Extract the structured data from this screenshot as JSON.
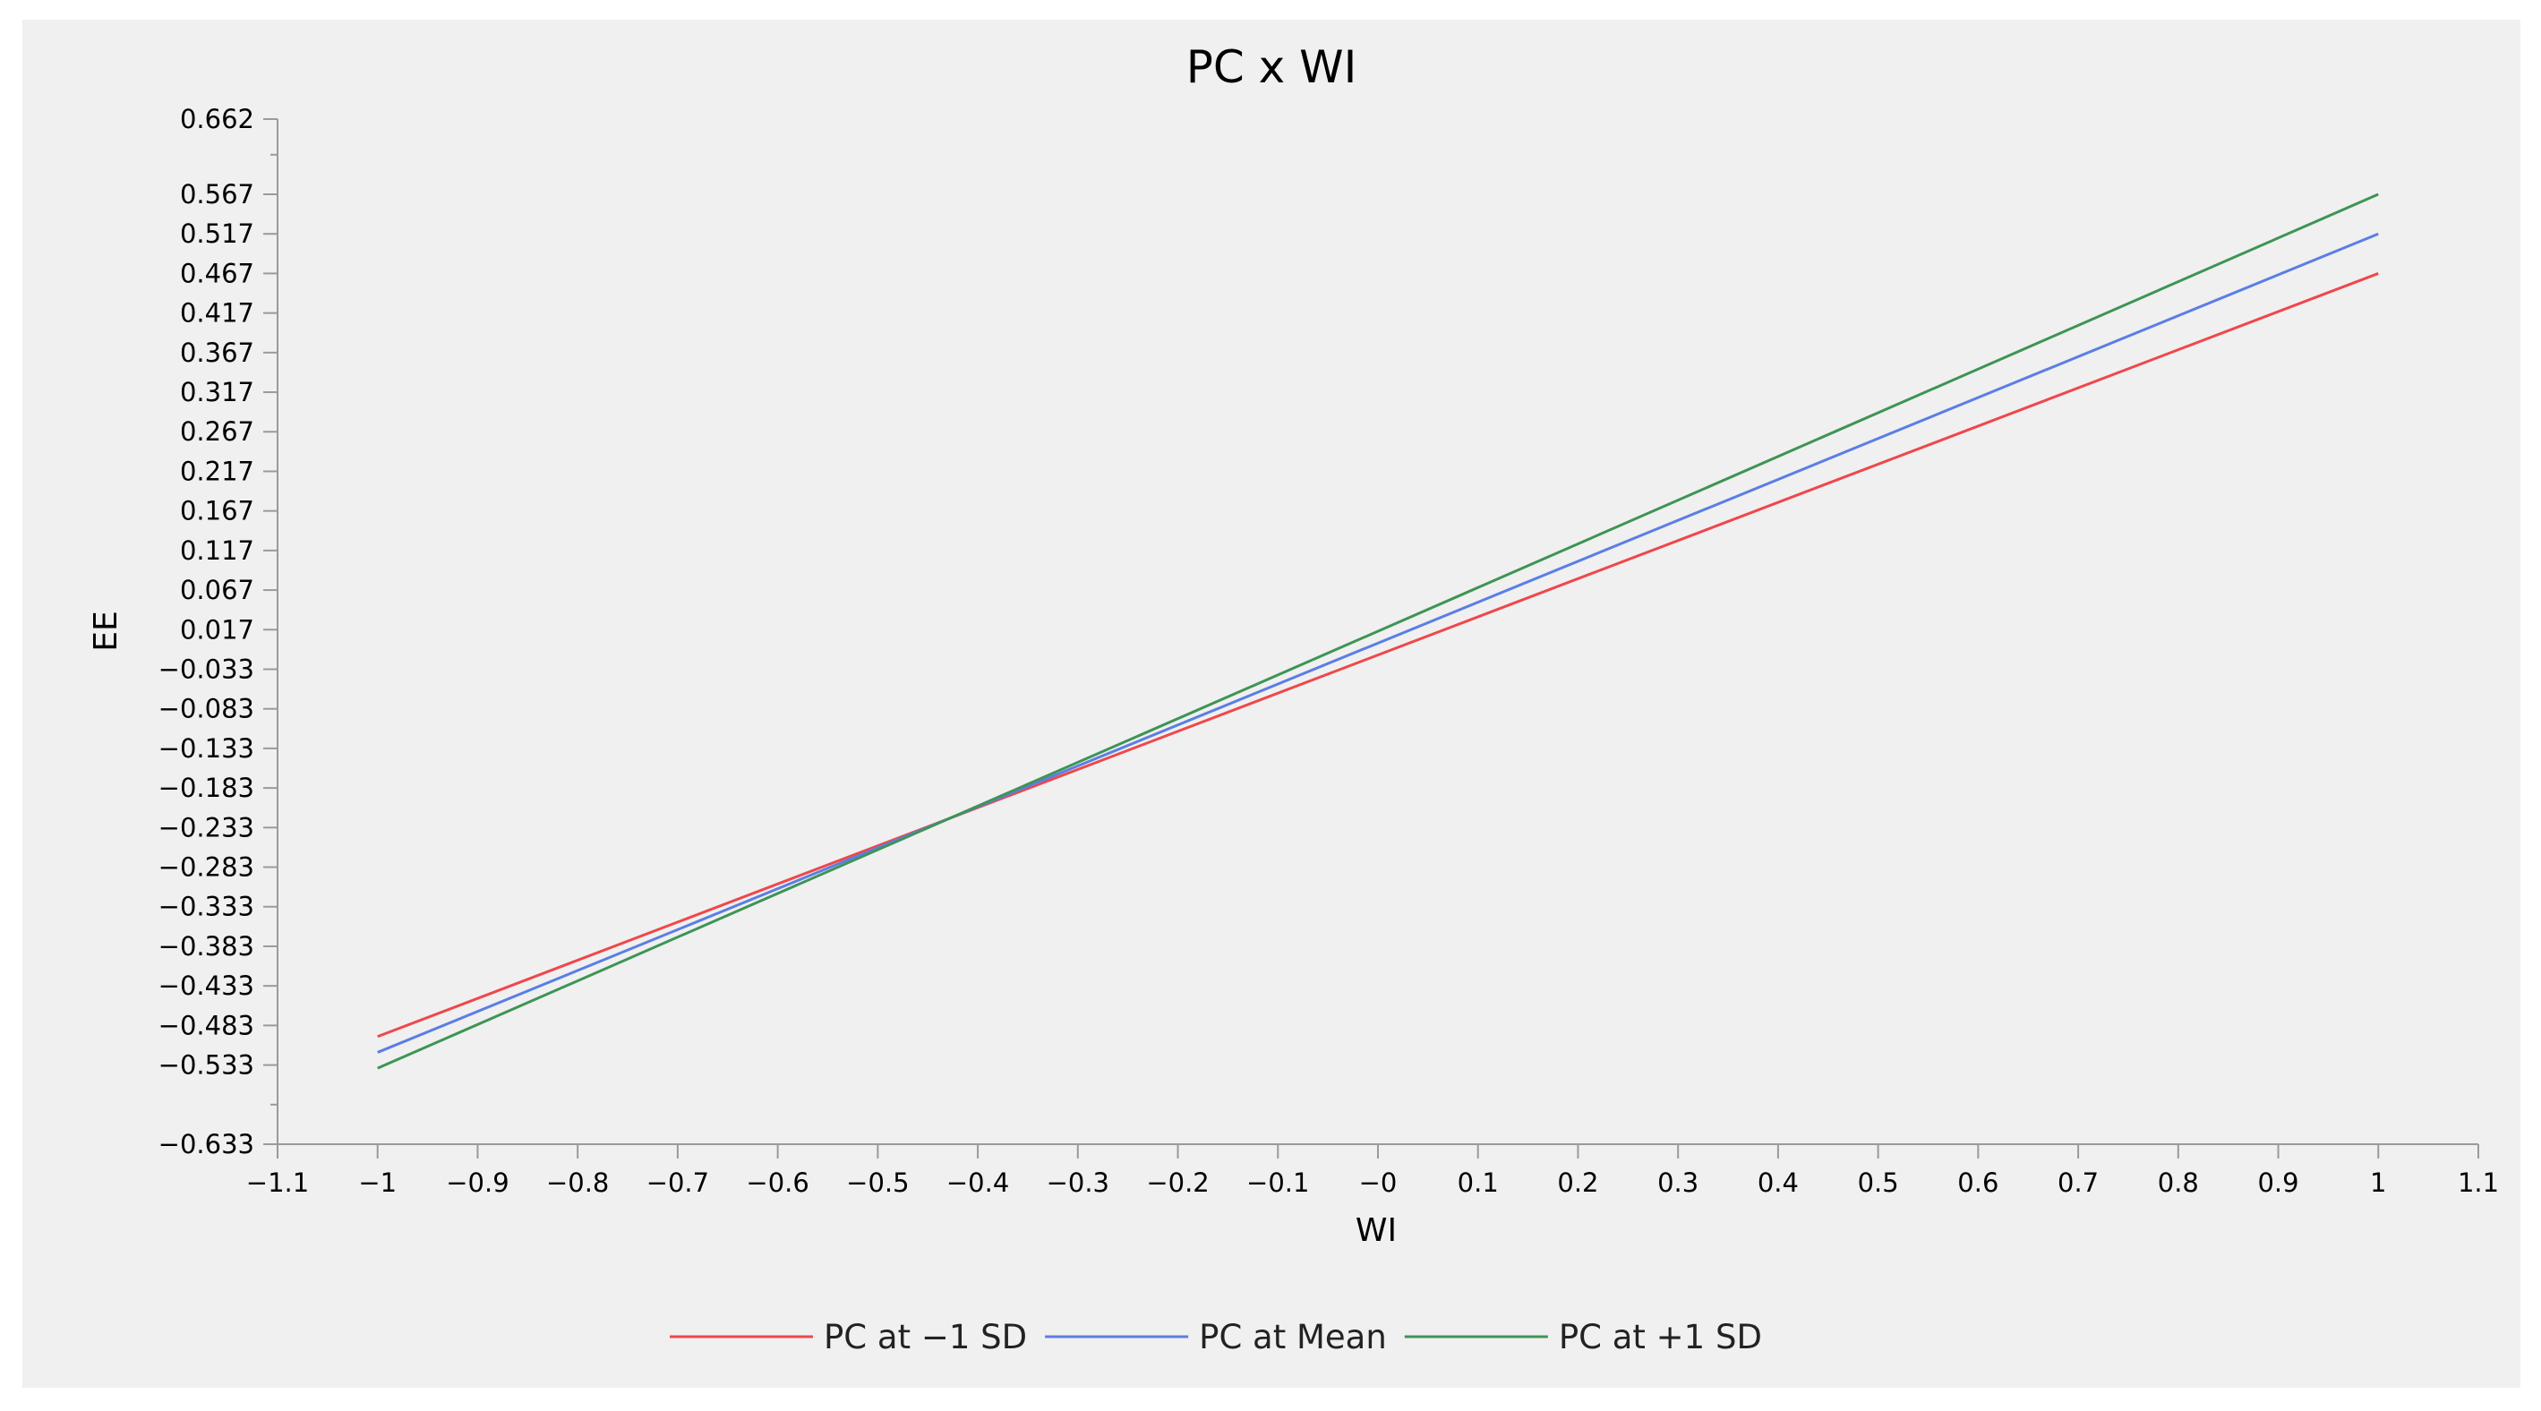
{
  "chart_data": {
    "type": "line",
    "title": "PC x WI",
    "xlabel": "WI",
    "ylabel": "EE",
    "xlim": [
      -1.1,
      1.1
    ],
    "ylim": [
      -0.633,
      0.662
    ],
    "x_ticks": [
      -1.1,
      -1,
      -0.9,
      -0.8,
      -0.7,
      -0.6,
      -0.5,
      -0.4,
      -0.3,
      -0.2,
      -0.1,
      0,
      0.1,
      0.2,
      0.3,
      0.4,
      0.5,
      0.6,
      0.7,
      0.8,
      0.9,
      1,
      1.1
    ],
    "x_tick_labels": [
      "−1.1",
      "−1",
      "−0.9",
      "−0.8",
      "−0.7",
      "−0.6",
      "−0.5",
      "−0.4",
      "−0.3",
      "−0.2",
      "−0.1",
      "−0",
      "0.1",
      "0.2",
      "0.3",
      "0.4",
      "0.5",
      "0.6",
      "0.7",
      "0.8",
      "0.9",
      "1",
      "1.1"
    ],
    "y_ticks": [
      0.662,
      0.567,
      0.517,
      0.467,
      0.417,
      0.367,
      0.317,
      0.267,
      0.217,
      0.167,
      0.117,
      0.067,
      0.017,
      -0.033,
      -0.083,
      -0.133,
      -0.183,
      -0.233,
      -0.283,
      -0.333,
      -0.383,
      -0.433,
      -0.483,
      -0.533,
      -0.633
    ],
    "y_tick_labels": [
      "0.662",
      "0.567",
      "0.517",
      "0.467",
      "0.417",
      "0.367",
      "0.317",
      "0.267",
      "0.217",
      "0.167",
      "0.117",
      "0.067",
      "0.017",
      "−0.033",
      "−0.083",
      "−0.133",
      "−0.183",
      "−0.233",
      "−0.283",
      "−0.333",
      "−0.383",
      "−0.433",
      "−0.483",
      "−0.533",
      "−0.633"
    ],
    "x": [
      -1,
      1
    ],
    "series": [
      {
        "name": "PC at −1 SD",
        "color": "#f0474a",
        "values": [
          -0.497,
          0.467
        ]
      },
      {
        "name": "PC at Mean",
        "color": "#5b7ee5",
        "values": [
          -0.517,
          0.517
        ]
      },
      {
        "name": "PC at +1 SD",
        "color": "#3e9455",
        "values": [
          -0.537,
          0.567
        ]
      }
    ],
    "grid": false,
    "legend_position": "bottom"
  }
}
